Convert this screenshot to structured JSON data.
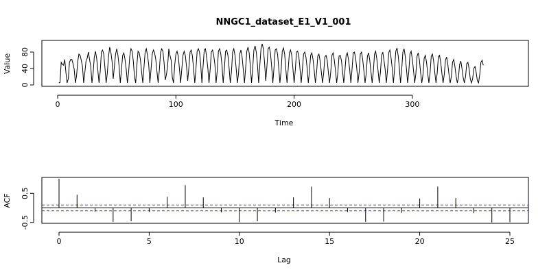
{
  "chart_data": [
    {
      "type": "line",
      "title": "NNGC1_dataset_E1_V1_001",
      "xlabel": "Time",
      "ylabel": "Value",
      "xlim": [
        0,
        392
      ],
      "ylim": [
        0,
        100
      ],
      "x_ticks": [
        0,
        100,
        200,
        300
      ],
      "y_ticks": [
        0,
        40,
        80
      ],
      "x_tick_labels": [
        "0",
        "100",
        "200",
        "300"
      ],
      "y_tick_labels": [
        "0",
        "40",
        "80"
      ],
      "grid": false,
      "series": [
        {
          "x_start": 1,
          "values": [
            5,
            6,
            55,
            50,
            48,
            62,
            30,
            5,
            15,
            55,
            62,
            62,
            52,
            38,
            5,
            22,
            58,
            75,
            72,
            60,
            45,
            5,
            30,
            58,
            65,
            80,
            62,
            45,
            5,
            28,
            68,
            82,
            65,
            35,
            5,
            32,
            80,
            85,
            75,
            42,
            5,
            28,
            68,
            92,
            80,
            58,
            15,
            45,
            75,
            88,
            72,
            45,
            5,
            38,
            72,
            78,
            62,
            38,
            5,
            30,
            70,
            88,
            82,
            58,
            20,
            5,
            48,
            82,
            78,
            62,
            32,
            5,
            42,
            80,
            88,
            72,
            50,
            5,
            38,
            75,
            85,
            78,
            62,
            32,
            5,
            35,
            78,
            88,
            82,
            55,
            12,
            25,
            45,
            88,
            72,
            60,
            18,
            5,
            48,
            75,
            82,
            70,
            40,
            5,
            38,
            72,
            82,
            72,
            45,
            10,
            42,
            80,
            85,
            70,
            38,
            5,
            40,
            82,
            88,
            80,
            50,
            5,
            45,
            85,
            88,
            68,
            42,
            5,
            38,
            80,
            85,
            72,
            50,
            5,
            35,
            82,
            88,
            75,
            48,
            5,
            38,
            82,
            85,
            72,
            42,
            5,
            32,
            80,
            88,
            72,
            40,
            5,
            28,
            75,
            85,
            68,
            38,
            5,
            40,
            82,
            92,
            78,
            45,
            5,
            42,
            85,
            95,
            80,
            50,
            5,
            48,
            88,
            100,
            88,
            55,
            10,
            45,
            88,
            92,
            78,
            45,
            5,
            42,
            85,
            88,
            75,
            42,
            5,
            35,
            82,
            90,
            75,
            38,
            5,
            38,
            78,
            85,
            72,
            40,
            5,
            35,
            80,
            82,
            70,
            38,
            5,
            38,
            75,
            80,
            68,
            42,
            5,
            35,
            72,
            78,
            62,
            35,
            5,
            30,
            70,
            75,
            58,
            32,
            5,
            28,
            68,
            72,
            60,
            30,
            5,
            32,
            72,
            78,
            60,
            35,
            5,
            30,
            70,
            72,
            60,
            32,
            5,
            35,
            72,
            78,
            62,
            38,
            5,
            38,
            78,
            80,
            66,
            40,
            5,
            30,
            75,
            80,
            62,
            35,
            5,
            28,
            70,
            78,
            60,
            32,
            5,
            32,
            75,
            82,
            62,
            35,
            5,
            30,
            72,
            80,
            60,
            38,
            5,
            35,
            78,
            85,
            66,
            40,
            5,
            40,
            82,
            90,
            72,
            42,
            5,
            38,
            80,
            88,
            70,
            40,
            5,
            32,
            75,
            82,
            62,
            35,
            5,
            28,
            70,
            78,
            60,
            30,
            5,
            25,
            65,
            72,
            55,
            28,
            5,
            30,
            70,
            75,
            58,
            30,
            5,
            28,
            68,
            72,
            55,
            28,
            5,
            25,
            60,
            68,
            50,
            25,
            5,
            20,
            55,
            62,
            45,
            22,
            5,
            18,
            50,
            58,
            40,
            18,
            5,
            20,
            52,
            55,
            40,
            15,
            5,
            15,
            40,
            45,
            30,
            10,
            5,
            25,
            55,
            60,
            48
          ]
        }
      ]
    },
    {
      "type": "bar",
      "xlabel": "Lag",
      "ylabel": "ACF",
      "xlim": [
        0,
        26
      ],
      "ylim": [
        -0.7,
        1.0
      ],
      "x_ticks": [
        0,
        5,
        10,
        15,
        20,
        25
      ],
      "y_ticks": [
        -0.5,
        0.5
      ],
      "x_tick_labels": [
        "0",
        "5",
        "10",
        "15",
        "20",
        "25"
      ],
      "y_tick_labels": [
        "-0.5",
        "0.5"
      ],
      "confidence_bound": 0.1,
      "grid": false,
      "series": [
        {
          "lags": [
            0,
            1,
            2,
            3,
            4,
            5,
            6,
            7,
            8,
            9,
            10,
            11,
            12,
            13,
            14,
            15,
            16,
            17,
            18,
            19,
            20,
            21,
            22,
            23,
            24,
            25
          ],
          "values": [
            1.0,
            0.45,
            -0.13,
            -0.48,
            -0.46,
            -0.14,
            0.38,
            0.78,
            0.36,
            -0.15,
            -0.49,
            -0.46,
            -0.16,
            0.36,
            0.73,
            0.34,
            -0.14,
            -0.48,
            -0.47,
            -0.17,
            0.32,
            0.73,
            0.34,
            -0.18,
            -0.5,
            -0.49
          ]
        }
      ]
    }
  ]
}
